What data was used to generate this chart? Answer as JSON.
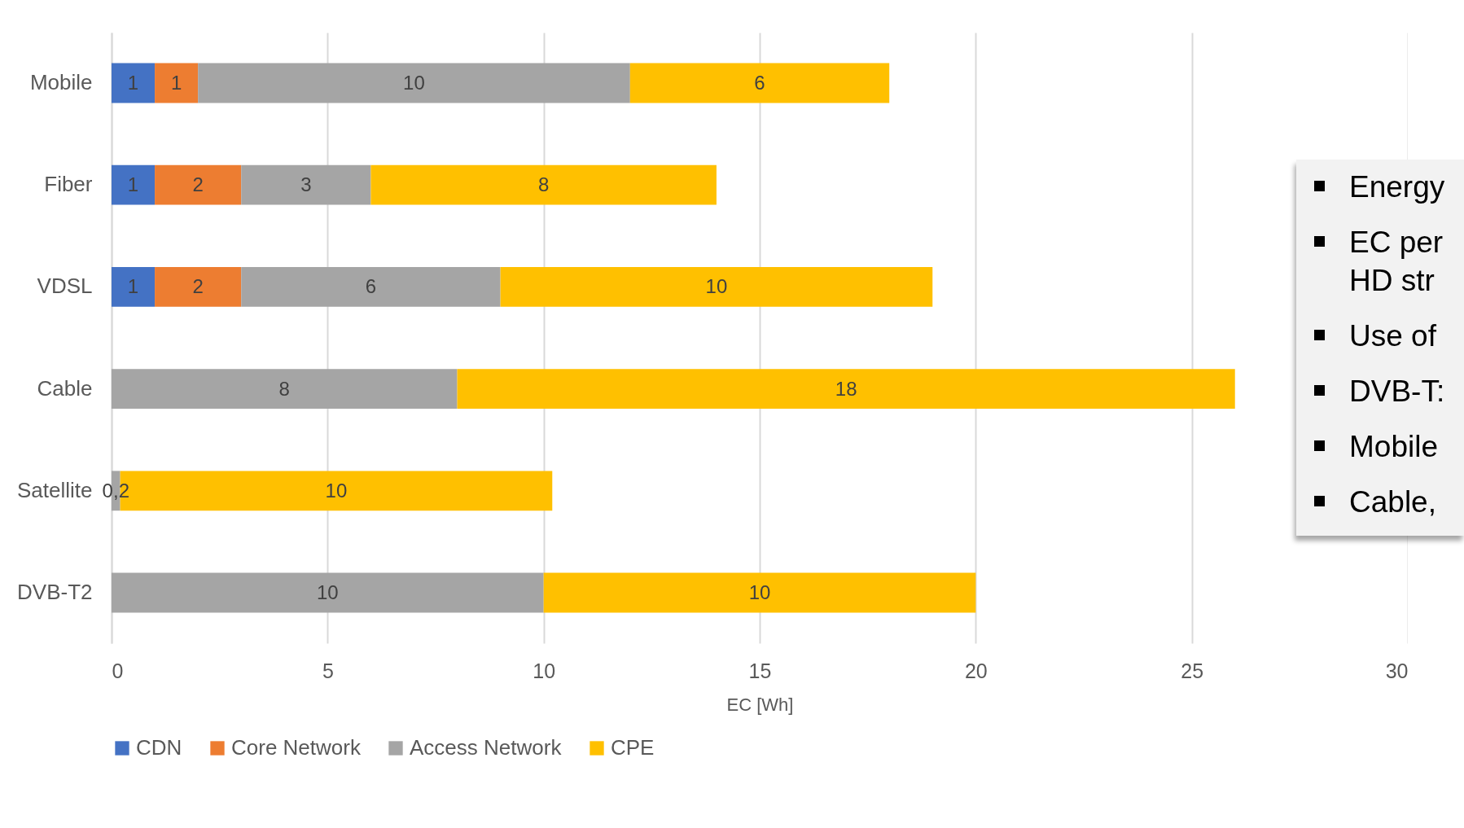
{
  "chart_data": {
    "type": "bar",
    "orientation": "horizontal",
    "stacked": true,
    "categories": [
      "Mobile",
      "Fiber",
      "VDSL",
      "Cable",
      "Satellite",
      "DVB-T2"
    ],
    "series": [
      {
        "name": "CDN",
        "color": "#4472c4",
        "values": [
          1,
          1,
          1,
          null,
          null,
          null
        ],
        "value_labels": [
          "1",
          "1",
          "1",
          null,
          null,
          null
        ]
      },
      {
        "name": "Core Network",
        "color": "#ed7d31",
        "values": [
          1,
          2,
          2,
          null,
          null,
          null
        ],
        "value_labels": [
          "1",
          "2",
          "2",
          null,
          null,
          null
        ]
      },
      {
        "name": "Access Network",
        "color": "#a5a5a5",
        "values": [
          10,
          3,
          6,
          8,
          0.2,
          10
        ],
        "value_labels": [
          "10",
          "3",
          "6",
          "8",
          "0,2",
          "10"
        ]
      },
      {
        "name": "CPE",
        "color": "#ffc000",
        "values": [
          6,
          8,
          10,
          18,
          10,
          10
        ],
        "value_labels": [
          "6",
          "8",
          "10",
          "18",
          "10",
          "10"
        ]
      }
    ],
    "xlabel": "EC [Wh]",
    "xlim": [
      0,
      30
    ],
    "xticks": [
      0,
      5,
      10,
      15,
      20,
      25,
      30
    ],
    "grid": "x",
    "legend": "bottom",
    "annotations": [
      "Energy",
      "EC per HD str",
      "Use of",
      "DVB-T:",
      "Mobile",
      "Cable,"
    ]
  }
}
